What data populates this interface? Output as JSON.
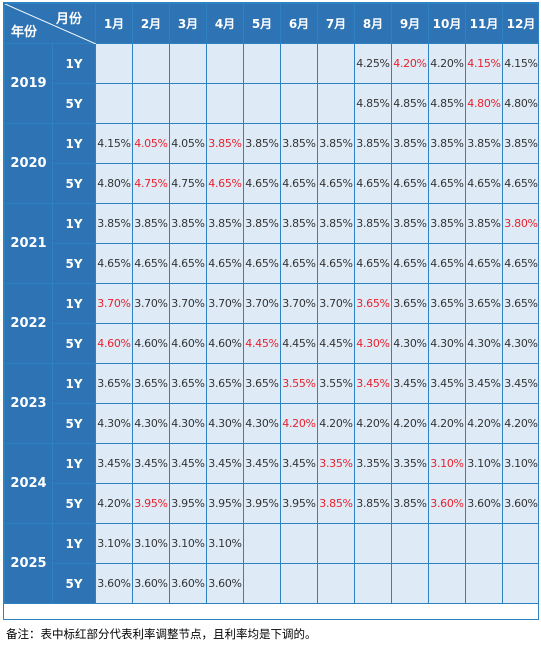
{
  "header": {
    "corner_top": "月份",
    "corner_bottom": "年份",
    "months": [
      "1月",
      "2月",
      "3月",
      "4月",
      "5月",
      "6月",
      "7月",
      "8月",
      "9月",
      "10月",
      "11月",
      "12月"
    ]
  },
  "years": [
    {
      "year": "2019",
      "rows": [
        {
          "tenor": "1Y",
          "cells": [
            {
              "v": "",
              "r": false
            },
            {
              "v": "",
              "r": false
            },
            {
              "v": "",
              "r": false
            },
            {
              "v": "",
              "r": false
            },
            {
              "v": "",
              "r": false
            },
            {
              "v": "",
              "r": false
            },
            {
              "v": "",
              "r": false
            },
            {
              "v": "4.25%",
              "r": false
            },
            {
              "v": "4.20%",
              "r": true
            },
            {
              "v": "4.20%",
              "r": false
            },
            {
              "v": "4.15%",
              "r": true
            },
            {
              "v": "4.15%",
              "r": false
            }
          ]
        },
        {
          "tenor": "5Y",
          "cells": [
            {
              "v": "",
              "r": false
            },
            {
              "v": "",
              "r": false
            },
            {
              "v": "",
              "r": false
            },
            {
              "v": "",
              "r": false
            },
            {
              "v": "",
              "r": false
            },
            {
              "v": "",
              "r": false
            },
            {
              "v": "",
              "r": false
            },
            {
              "v": "4.85%",
              "r": false
            },
            {
              "v": "4.85%",
              "r": false
            },
            {
              "v": "4.85%",
              "r": false
            },
            {
              "v": "4.80%",
              "r": true
            },
            {
              "v": "4.80%",
              "r": false
            }
          ]
        }
      ]
    },
    {
      "year": "2020",
      "rows": [
        {
          "tenor": "1Y",
          "cells": [
            {
              "v": "4.15%",
              "r": false
            },
            {
              "v": "4.05%",
              "r": true
            },
            {
              "v": "4.05%",
              "r": false
            },
            {
              "v": "3.85%",
              "r": true
            },
            {
              "v": "3.85%",
              "r": false
            },
            {
              "v": "3.85%",
              "r": false
            },
            {
              "v": "3.85%",
              "r": false
            },
            {
              "v": "3.85%",
              "r": false
            },
            {
              "v": "3.85%",
              "r": false
            },
            {
              "v": "3.85%",
              "r": false
            },
            {
              "v": "3.85%",
              "r": false
            },
            {
              "v": "3.85%",
              "r": false
            }
          ]
        },
        {
          "tenor": "5Y",
          "cells": [
            {
              "v": "4.80%",
              "r": false
            },
            {
              "v": "4.75%",
              "r": true
            },
            {
              "v": "4.75%",
              "r": false
            },
            {
              "v": "4.65%",
              "r": true
            },
            {
              "v": "4.65%",
              "r": false
            },
            {
              "v": "4.65%",
              "r": false
            },
            {
              "v": "4.65%",
              "r": false
            },
            {
              "v": "4.65%",
              "r": false
            },
            {
              "v": "4.65%",
              "r": false
            },
            {
              "v": "4.65%",
              "r": false
            },
            {
              "v": "4.65%",
              "r": false
            },
            {
              "v": "4.65%",
              "r": false
            }
          ]
        }
      ]
    },
    {
      "year": "2021",
      "rows": [
        {
          "tenor": "1Y",
          "cells": [
            {
              "v": "3.85%",
              "r": false
            },
            {
              "v": "3.85%",
              "r": false
            },
            {
              "v": "3.85%",
              "r": false
            },
            {
              "v": "3.85%",
              "r": false
            },
            {
              "v": "3.85%",
              "r": false
            },
            {
              "v": "3.85%",
              "r": false
            },
            {
              "v": "3.85%",
              "r": false
            },
            {
              "v": "3.85%",
              "r": false
            },
            {
              "v": "3.85%",
              "r": false
            },
            {
              "v": "3.85%",
              "r": false
            },
            {
              "v": "3.85%",
              "r": false
            },
            {
              "v": "3.80%",
              "r": true
            }
          ]
        },
        {
          "tenor": "5Y",
          "cells": [
            {
              "v": "4.65%",
              "r": false
            },
            {
              "v": "4.65%",
              "r": false
            },
            {
              "v": "4.65%",
              "r": false
            },
            {
              "v": "4.65%",
              "r": false
            },
            {
              "v": "4.65%",
              "r": false
            },
            {
              "v": "4.65%",
              "r": false
            },
            {
              "v": "4.65%",
              "r": false
            },
            {
              "v": "4.65%",
              "r": false
            },
            {
              "v": "4.65%",
              "r": false
            },
            {
              "v": "4.65%",
              "r": false
            },
            {
              "v": "4.65%",
              "r": false
            },
            {
              "v": "4.65%",
              "r": false
            }
          ]
        }
      ]
    },
    {
      "year": "2022",
      "rows": [
        {
          "tenor": "1Y",
          "cells": [
            {
              "v": "3.70%",
              "r": true
            },
            {
              "v": "3.70%",
              "r": false
            },
            {
              "v": "3.70%",
              "r": false
            },
            {
              "v": "3.70%",
              "r": false
            },
            {
              "v": "3.70%",
              "r": false
            },
            {
              "v": "3.70%",
              "r": false
            },
            {
              "v": "3.70%",
              "r": false
            },
            {
              "v": "3.65%",
              "r": true
            },
            {
              "v": "3.65%",
              "r": false
            },
            {
              "v": "3.65%",
              "r": false
            },
            {
              "v": "3.65%",
              "r": false
            },
            {
              "v": "3.65%",
              "r": false
            }
          ]
        },
        {
          "tenor": "5Y",
          "cells": [
            {
              "v": "4.60%",
              "r": true
            },
            {
              "v": "4.60%",
              "r": false
            },
            {
              "v": "4.60%",
              "r": false
            },
            {
              "v": "4.60%",
              "r": false
            },
            {
              "v": "4.45%",
              "r": true
            },
            {
              "v": "4.45%",
              "r": false
            },
            {
              "v": "4.45%",
              "r": false
            },
            {
              "v": "4.30%",
              "r": true
            },
            {
              "v": "4.30%",
              "r": false
            },
            {
              "v": "4.30%",
              "r": false
            },
            {
              "v": "4.30%",
              "r": false
            },
            {
              "v": "4.30%",
              "r": false
            }
          ]
        }
      ]
    },
    {
      "year": "2023",
      "rows": [
        {
          "tenor": "1Y",
          "cells": [
            {
              "v": "3.65%",
              "r": false
            },
            {
              "v": "3.65%",
              "r": false
            },
            {
              "v": "3.65%",
              "r": false
            },
            {
              "v": "3.65%",
              "r": false
            },
            {
              "v": "3.65%",
              "r": false
            },
            {
              "v": "3.55%",
              "r": true
            },
            {
              "v": "3.55%",
              "r": false
            },
            {
              "v": "3.45%",
              "r": true
            },
            {
              "v": "3.45%",
              "r": false
            },
            {
              "v": "3.45%",
              "r": false
            },
            {
              "v": "3.45%",
              "r": false
            },
            {
              "v": "3.45%",
              "r": false
            }
          ]
        },
        {
          "tenor": "5Y",
          "cells": [
            {
              "v": "4.30%",
              "r": false
            },
            {
              "v": "4.30%",
              "r": false
            },
            {
              "v": "4.30%",
              "r": false
            },
            {
              "v": "4.30%",
              "r": false
            },
            {
              "v": "4.30%",
              "r": false
            },
            {
              "v": "4.20%",
              "r": true
            },
            {
              "v": "4.20%",
              "r": false
            },
            {
              "v": "4.20%",
              "r": false
            },
            {
              "v": "4.20%",
              "r": false
            },
            {
              "v": "4.20%",
              "r": false
            },
            {
              "v": "4.20%",
              "r": false
            },
            {
              "v": "4.20%",
              "r": false
            }
          ]
        }
      ]
    },
    {
      "year": "2024",
      "rows": [
        {
          "tenor": "1Y",
          "cells": [
            {
              "v": "3.45%",
              "r": false
            },
            {
              "v": "3.45%",
              "r": false
            },
            {
              "v": "3.45%",
              "r": false
            },
            {
              "v": "3.45%",
              "r": false
            },
            {
              "v": "3.45%",
              "r": false
            },
            {
              "v": "3.45%",
              "r": false
            },
            {
              "v": "3.35%",
              "r": true
            },
            {
              "v": "3.35%",
              "r": false
            },
            {
              "v": "3.35%",
              "r": false
            },
            {
              "v": "3.10%",
              "r": true
            },
            {
              "v": "3.10%",
              "r": false
            },
            {
              "v": "3.10%",
              "r": false
            }
          ]
        },
        {
          "tenor": "5Y",
          "cells": [
            {
              "v": "4.20%",
              "r": false
            },
            {
              "v": "3.95%",
              "r": true
            },
            {
              "v": "3.95%",
              "r": false
            },
            {
              "v": "3.95%",
              "r": false
            },
            {
              "v": "3.95%",
              "r": false
            },
            {
              "v": "3.95%",
              "r": false
            },
            {
              "v": "3.85%",
              "r": true
            },
            {
              "v": "3.85%",
              "r": false
            },
            {
              "v": "3.85%",
              "r": false
            },
            {
              "v": "3.60%",
              "r": true
            },
            {
              "v": "3.60%",
              "r": false
            },
            {
              "v": "3.60%",
              "r": false
            }
          ]
        }
      ]
    },
    {
      "year": "2025",
      "rows": [
        {
          "tenor": "1Y",
          "cells": [
            {
              "v": "3.10%",
              "r": false
            },
            {
              "v": "3.10%",
              "r": false
            },
            {
              "v": "3.10%",
              "r": false
            },
            {
              "v": "3.10%",
              "r": false
            },
            {
              "v": "",
              "r": false
            },
            {
              "v": "",
              "r": false
            },
            {
              "v": "",
              "r": false
            },
            {
              "v": "",
              "r": false
            },
            {
              "v": "",
              "r": false
            },
            {
              "v": "",
              "r": false
            },
            {
              "v": "",
              "r": false
            },
            {
              "v": "",
              "r": false
            }
          ]
        },
        {
          "tenor": "5Y",
          "cells": [
            {
              "v": "3.60%",
              "r": false
            },
            {
              "v": "3.60%",
              "r": false
            },
            {
              "v": "3.60%",
              "r": false
            },
            {
              "v": "3.60%",
              "r": false
            },
            {
              "v": "",
              "r": false
            },
            {
              "v": "",
              "r": false
            },
            {
              "v": "",
              "r": false
            },
            {
              "v": "",
              "r": false
            },
            {
              "v": "",
              "r": false
            },
            {
              "v": "",
              "r": false
            },
            {
              "v": "",
              "r": false
            },
            {
              "v": "",
              "r": false
            }
          ]
        }
      ]
    }
  ],
  "note": "备注：表中标红部分代表利率调整节点，且利率均是下调的。",
  "colors": {
    "header_bg": "#2e74b5",
    "cell_bg": "#deebf7",
    "grid": "#2f82c2",
    "highlight_text": "#e8212e"
  }
}
